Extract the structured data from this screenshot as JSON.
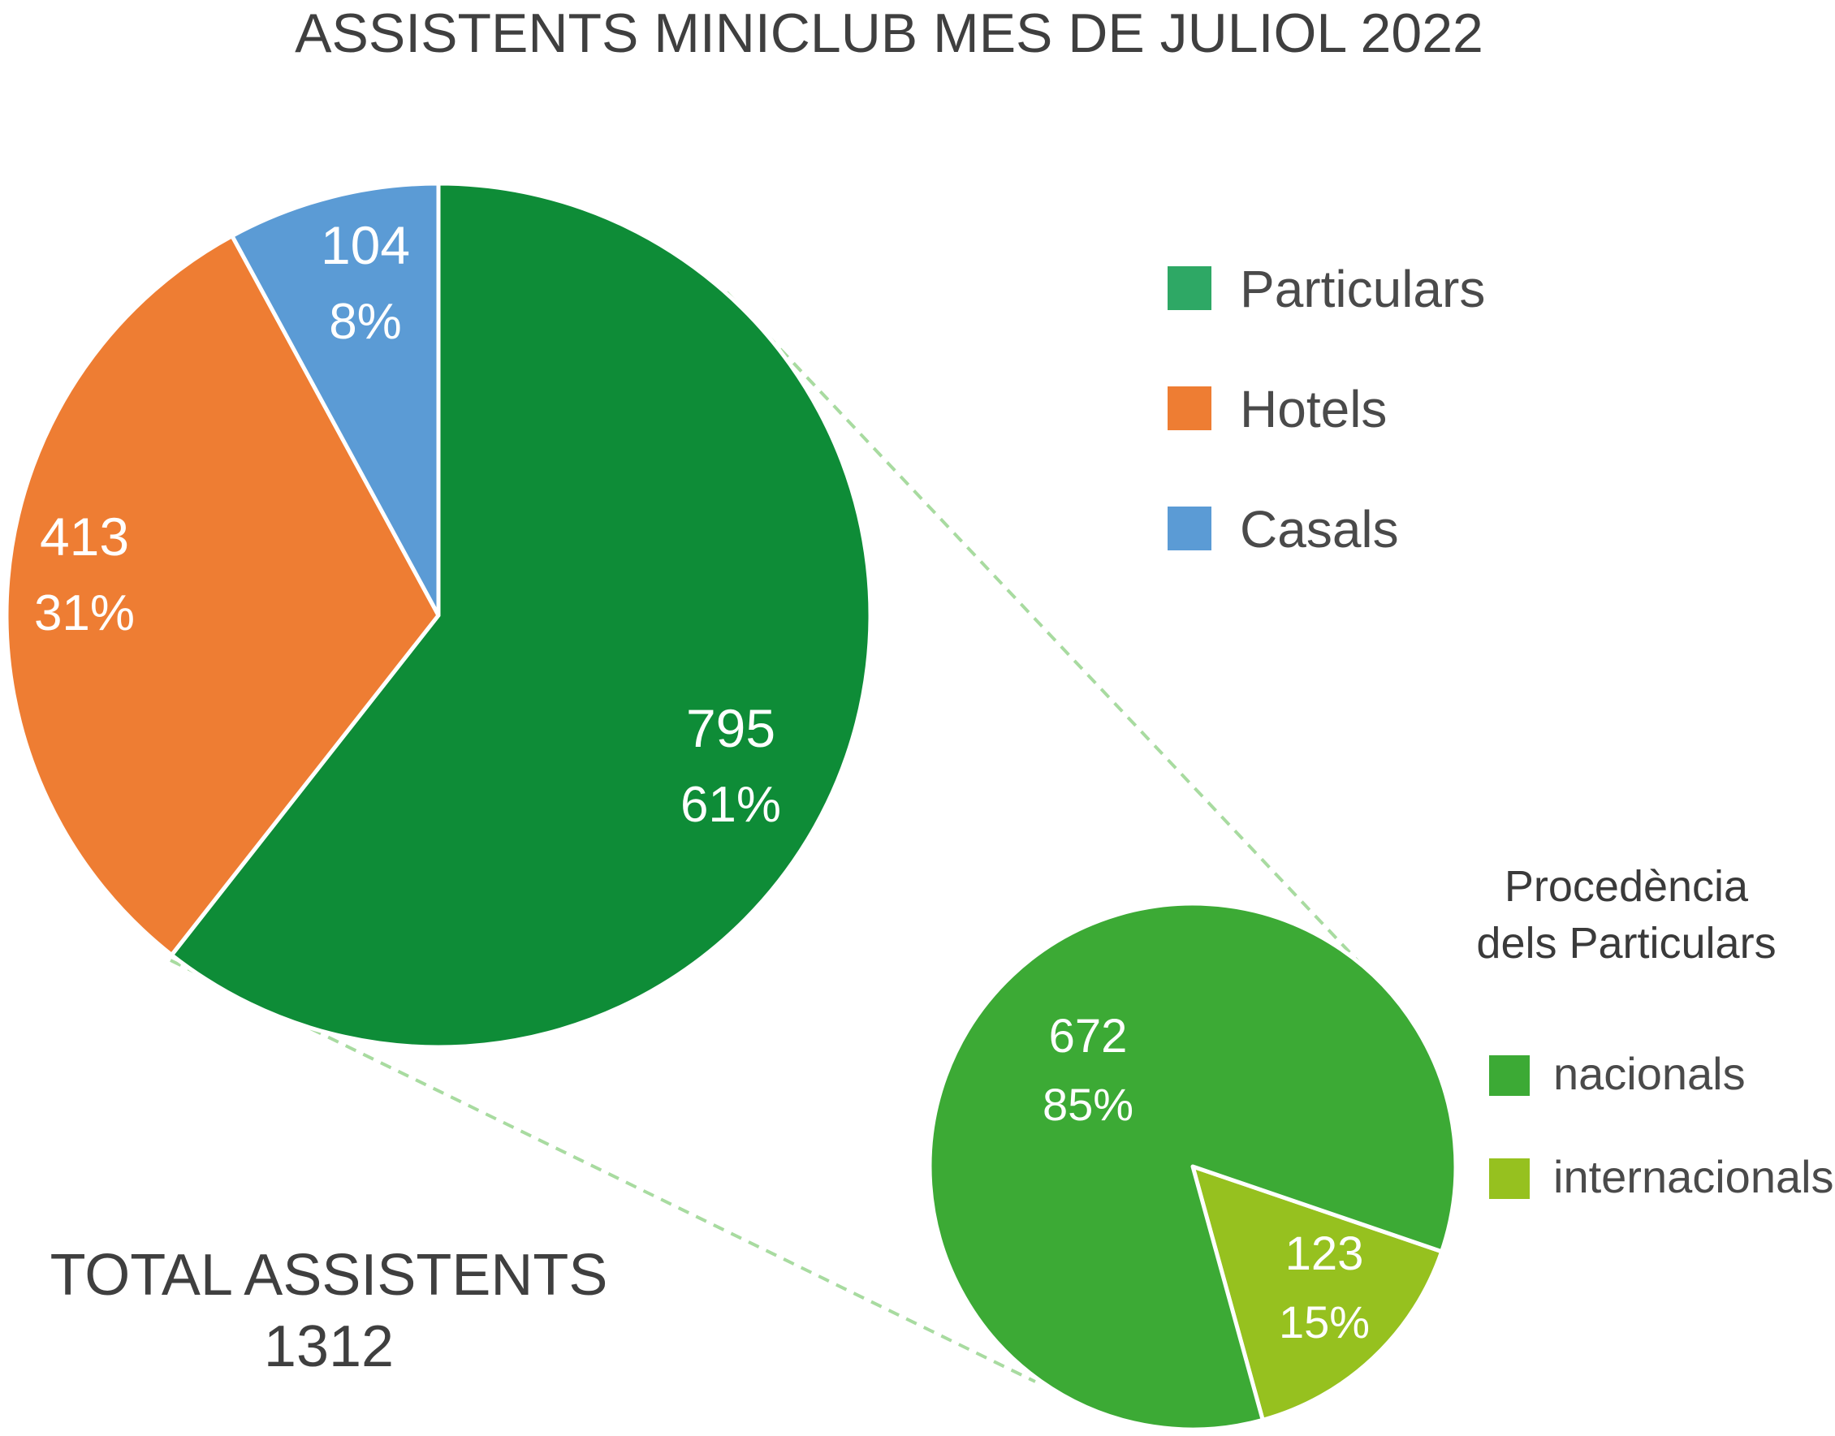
{
  "chart_data": [
    {
      "type": "pie",
      "title": "ASSISTENTS MINICLUB MES DE JULIOL 2022",
      "slices": [
        {
          "label": "Particulars",
          "value": 795,
          "percent": "61%",
          "color": "#0e8c37",
          "legend_color": "#2ea865"
        },
        {
          "label": "Hotels",
          "value": 413,
          "percent": "31%",
          "color": "#ee7d33"
        },
        {
          "label": "Casals",
          "value": 104,
          "percent": "8%",
          "color": "#5b9bd5"
        }
      ],
      "total_label": "TOTAL ASSISTENTS",
      "total_value": "1312"
    },
    {
      "type": "pie",
      "title_lines": [
        "Procedència",
        "dels Particulars"
      ],
      "slices": [
        {
          "label": "nacionals",
          "value": 672,
          "percent": "85%",
          "color": "#3caa35"
        },
        {
          "label": "internacionals",
          "value": 123,
          "percent": "15%",
          "color": "#96c11f"
        }
      ]
    }
  ],
  "connector_color": "#a8dba0"
}
